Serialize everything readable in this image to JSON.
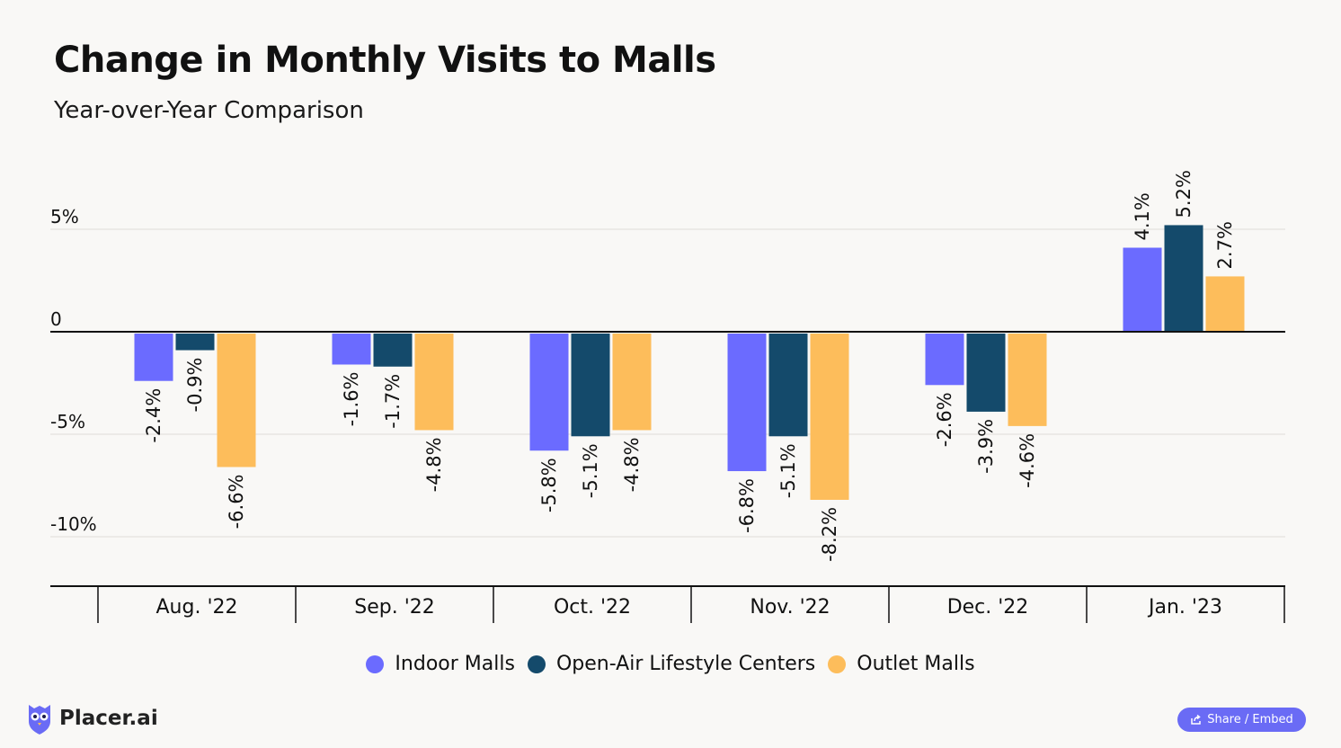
{
  "header": {
    "title": "Change in Monthly Visits to Malls",
    "subtitle": "Year-over-Year Comparison"
  },
  "chart_data": {
    "type": "bar",
    "title": "Change in Monthly Visits to Malls",
    "subtitle": "Year-over-Year Comparison",
    "categories": [
      "Aug. '22",
      "Sep. '22",
      "Oct. '22",
      "Nov. '22",
      "Dec. '22",
      "Jan. '23"
    ],
    "series": [
      {
        "name": "Indoor Malls",
        "color": "#6b6bff",
        "values": [
          -2.4,
          -1.6,
          -5.8,
          -6.8,
          -2.6,
          4.1
        ]
      },
      {
        "name": "Open-Air Lifestyle Centers",
        "color": "#144a6b",
        "values": [
          -0.9,
          -1.7,
          -5.1,
          -5.1,
          -3.9,
          5.2
        ]
      },
      {
        "name": "Outlet Malls",
        "color": "#fdbd5b",
        "values": [
          -6.6,
          -4.8,
          -4.8,
          -8.2,
          -4.6,
          2.7
        ]
      }
    ],
    "yticks": [
      {
        "value": 5,
        "label": "5%"
      },
      {
        "value": 0,
        "label": "0"
      },
      {
        "value": -5,
        "label": "-5%"
      },
      {
        "value": -10,
        "label": "-10%"
      }
    ],
    "ylim": [
      -12.5,
      7
    ],
    "value_suffix": "%",
    "grid": true,
    "legend_position": "bottom"
  },
  "legend": {
    "items": [
      {
        "label": "Indoor Malls",
        "color": "#6b6bff"
      },
      {
        "label": "Open-Air Lifestyle Centers",
        "color": "#144a6b"
      },
      {
        "label": "Outlet Malls",
        "color": "#fdbd5b"
      }
    ]
  },
  "footer": {
    "brand": "Placer.ai",
    "brand_color": "#6a6bf5",
    "share_label": "Share / Embed"
  },
  "icons": {
    "logo": "owl-logo-icon",
    "share": "share-icon"
  }
}
